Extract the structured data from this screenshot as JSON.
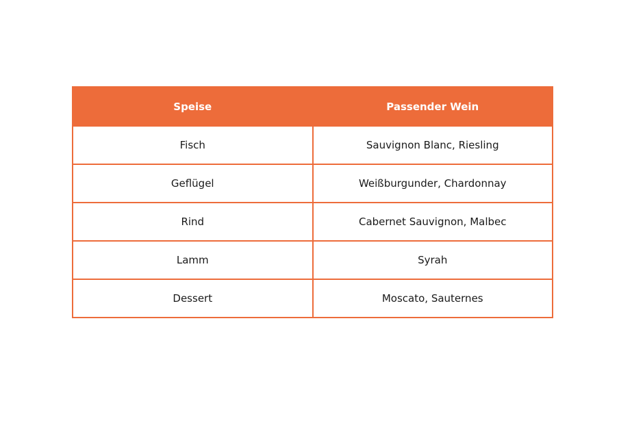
{
  "table": {
    "headers": [
      "Speise",
      "Passender Wein"
    ],
    "rows": [
      [
        "Fisch",
        "Sauvignon Blanc, Riesling"
      ],
      [
        "Geflügel",
        "Weißburgunder, Chardonnay"
      ],
      [
        "Rind",
        "Cabernet Sauvignon, Malbec"
      ],
      [
        "Lamm",
        "Syrah"
      ],
      [
        "Dessert",
        "Moscato, Sauternes"
      ]
    ],
    "accent_color": "#ED6C3A"
  }
}
